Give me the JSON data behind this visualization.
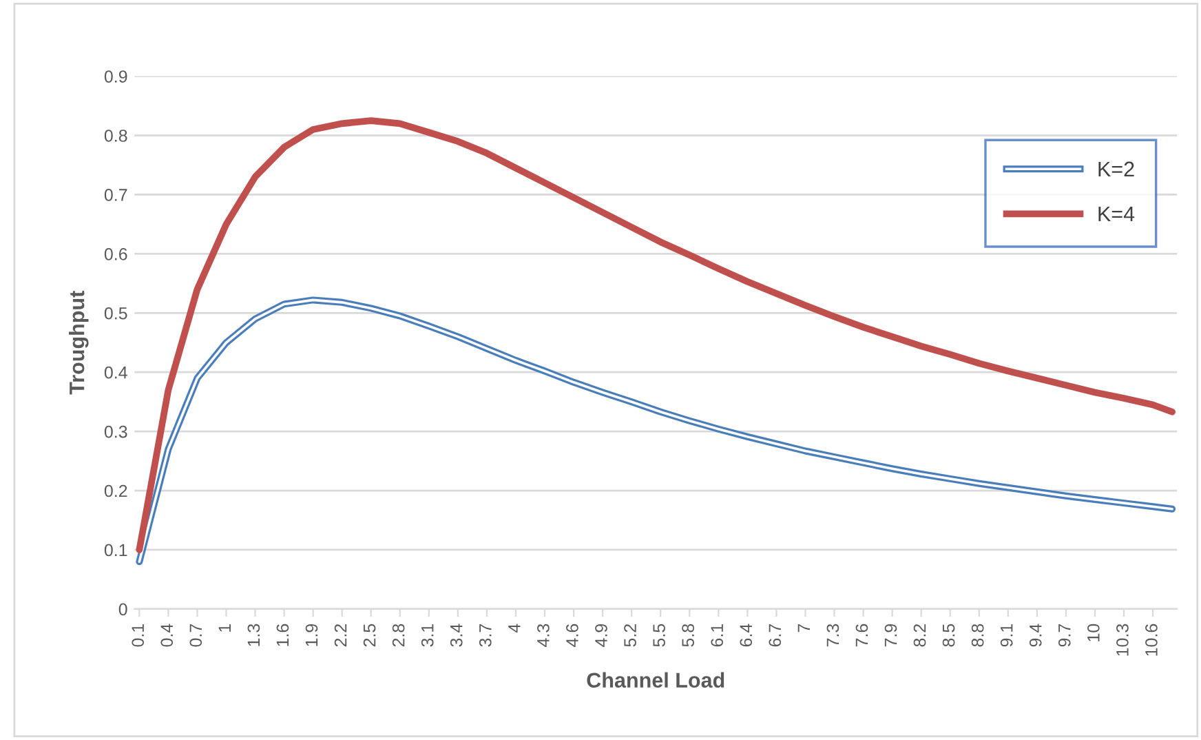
{
  "chart_data": {
    "type": "line",
    "xlabel": "Channel Load",
    "ylabel": "Troughput",
    "x": [
      0.1,
      0.4,
      0.7,
      1,
      1.3,
      1.6,
      1.9,
      2.2,
      2.5,
      2.8,
      3.1,
      3.4,
      3.7,
      4,
      4.3,
      4.6,
      4.9,
      5.2,
      5.5,
      5.8,
      6.1,
      6.4,
      6.7,
      7,
      7.3,
      7.6,
      7.9,
      8.2,
      8.5,
      8.8,
      9.1,
      9.4,
      9.7,
      10,
      10.3,
      10.6,
      10.8
    ],
    "series": [
      {
        "name": "K=2",
        "color": "#4a7ebb",
        "values": [
          0.08,
          0.27,
          0.39,
          0.45,
          0.49,
          0.515,
          0.522,
          0.518,
          0.508,
          0.495,
          0.478,
          0.46,
          0.44,
          0.42,
          0.402,
          0.383,
          0.366,
          0.35,
          0.333,
          0.318,
          0.304,
          0.291,
          0.279,
          0.267,
          0.257,
          0.247,
          0.237,
          0.228,
          0.22,
          0.212,
          0.205,
          0.198,
          0.191,
          0.185,
          0.179,
          0.173,
          0.169
        ]
      },
      {
        "name": "K=4",
        "color": "#c0504d",
        "values": [
          0.1,
          0.37,
          0.54,
          0.65,
          0.73,
          0.78,
          0.81,
          0.82,
          0.825,
          0.82,
          0.805,
          0.79,
          0.77,
          0.745,
          0.72,
          0.695,
          0.67,
          0.645,
          0.62,
          0.598,
          0.575,
          0.553,
          0.533,
          0.513,
          0.494,
          0.476,
          0.46,
          0.444,
          0.43,
          0.415,
          0.402,
          0.39,
          0.378,
          0.366,
          0.356,
          0.345,
          0.333
        ]
      }
    ],
    "xlim": [
      0.05,
      10.85
    ],
    "xticks": [
      0.1,
      0.4,
      0.7,
      1,
      1.3,
      1.6,
      1.9,
      2.2,
      2.5,
      2.8,
      3.1,
      3.4,
      3.7,
      4,
      4.3,
      4.6,
      4.9,
      5.2,
      5.5,
      5.8,
      6.1,
      6.4,
      6.7,
      7,
      7.3,
      7.6,
      7.9,
      8.2,
      8.5,
      8.8,
      9.1,
      9.4,
      9.7,
      10,
      10.3,
      10.6
    ],
    "ylim": [
      0,
      0.9
    ],
    "yticks": [
      0,
      0.1,
      0.2,
      0.3,
      0.4,
      0.5,
      0.6,
      0.7,
      0.8,
      0.9
    ],
    "grid": "y",
    "legend": "top right",
    "marker": "none"
  }
}
